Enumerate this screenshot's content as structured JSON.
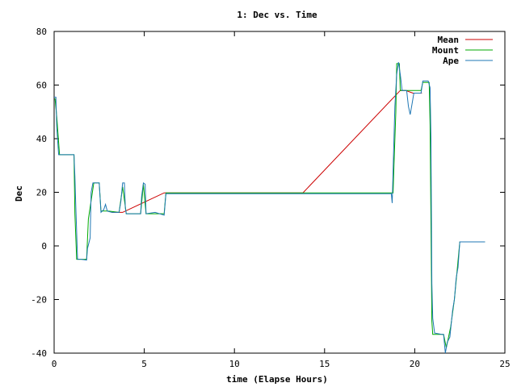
{
  "chart_data": {
    "type": "line",
    "title": "1: Dec vs. Time",
    "xlabel": "time (Elapse Hours)",
    "ylabel": "Dec",
    "xlim": [
      0,
      25
    ],
    "ylim": [
      -40,
      80
    ],
    "x_ticks": [
      0,
      5,
      10,
      15,
      20,
      25
    ],
    "y_ticks": [
      -40,
      -20,
      0,
      20,
      40,
      60,
      80
    ],
    "grid": false,
    "legend_position": "top-right",
    "series": [
      {
        "name": "Mean",
        "color": "#cc0000",
        "points": [
          [
            3.2,
            12.5
          ],
          [
            3.8,
            12.5
          ],
          [
            6.1,
            19.8
          ],
          [
            13.8,
            19.8
          ],
          [
            19.2,
            58.0
          ],
          [
            19.5,
            58.0
          ],
          [
            19.9,
            57.0
          ],
          [
            20.4,
            57.0
          ]
        ]
      },
      {
        "name": "Mount",
        "color": "#00aa00",
        "points": [
          [
            0.05,
            55
          ],
          [
            0.15,
            48
          ],
          [
            0.3,
            34
          ],
          [
            1.1,
            34
          ],
          [
            1.15,
            12
          ],
          [
            1.25,
            -5
          ],
          [
            1.8,
            -5
          ],
          [
            1.9,
            10
          ],
          [
            2.2,
            23.5
          ],
          [
            2.5,
            23.5
          ],
          [
            2.6,
            13
          ],
          [
            3.0,
            13
          ],
          [
            3.6,
            12.5
          ],
          [
            3.8,
            22
          ],
          [
            4.0,
            12
          ],
          [
            4.8,
            12
          ],
          [
            4.95,
            23
          ],
          [
            5.1,
            12
          ],
          [
            6.1,
            12
          ],
          [
            6.2,
            19.8
          ],
          [
            18.8,
            19.8
          ],
          [
            18.85,
            30
          ],
          [
            18.95,
            50
          ],
          [
            19.0,
            68
          ],
          [
            19.15,
            68
          ],
          [
            19.2,
            58
          ],
          [
            20.35,
            58
          ],
          [
            20.45,
            61
          ],
          [
            20.8,
            61
          ],
          [
            20.85,
            45
          ],
          [
            20.95,
            -28
          ],
          [
            21.0,
            -33
          ],
          [
            21.6,
            -33
          ],
          [
            21.75,
            -38
          ],
          [
            22.0,
            -30
          ],
          [
            22.2,
            -20
          ],
          [
            22.5,
            1.5
          ],
          [
            23.9,
            1.5
          ]
        ]
      },
      {
        "name": "Ape",
        "color": "#1f77b4",
        "points": [
          [
            0.0,
            55.5
          ],
          [
            0.1,
            55.5
          ],
          [
            0.15,
            44
          ],
          [
            0.25,
            34
          ],
          [
            1.1,
            34
          ],
          [
            1.15,
            26
          ],
          [
            1.2,
            15
          ],
          [
            1.3,
            -5
          ],
          [
            1.5,
            -5
          ],
          [
            1.8,
            -5.3
          ],
          [
            1.85,
            -1
          ],
          [
            2.0,
            3
          ],
          [
            2.05,
            20
          ],
          [
            2.15,
            23.5
          ],
          [
            2.5,
            23.5
          ],
          [
            2.6,
            12.5
          ],
          [
            2.75,
            13.5
          ],
          [
            2.85,
            15.5
          ],
          [
            2.95,
            13
          ],
          [
            3.2,
            12.5
          ],
          [
            3.6,
            12.5
          ],
          [
            3.7,
            16.5
          ],
          [
            3.8,
            23.5
          ],
          [
            3.9,
            23.5
          ],
          [
            3.95,
            14
          ],
          [
            4.0,
            12
          ],
          [
            4.8,
            12
          ],
          [
            4.85,
            18.5
          ],
          [
            4.95,
            23.5
          ],
          [
            5.05,
            23
          ],
          [
            5.1,
            12
          ],
          [
            5.6,
            12.5
          ],
          [
            6.1,
            11.5
          ],
          [
            6.2,
            19.5
          ],
          [
            18.7,
            19.5
          ],
          [
            18.75,
            16
          ],
          [
            18.8,
            28
          ],
          [
            18.9,
            52
          ],
          [
            19.0,
            64
          ],
          [
            19.1,
            68.5
          ],
          [
            19.2,
            64
          ],
          [
            19.3,
            58
          ],
          [
            19.55,
            58
          ],
          [
            19.65,
            52
          ],
          [
            19.75,
            49
          ],
          [
            19.85,
            53
          ],
          [
            19.95,
            57
          ],
          [
            20.35,
            57
          ],
          [
            20.45,
            61.5
          ],
          [
            20.75,
            61.5
          ],
          [
            20.85,
            59
          ],
          [
            20.9,
            40
          ],
          [
            20.95,
            -14
          ],
          [
            21.0,
            -27
          ],
          [
            21.1,
            -32.5
          ],
          [
            21.5,
            -33
          ],
          [
            21.6,
            -33
          ],
          [
            21.7,
            -40
          ],
          [
            21.8,
            -36
          ],
          [
            21.95,
            -34
          ],
          [
            22.1,
            -24
          ],
          [
            22.2,
            -20
          ],
          [
            22.3,
            -12
          ],
          [
            22.4,
            -8
          ],
          [
            22.5,
            1.5
          ],
          [
            23.9,
            1.5
          ]
        ]
      }
    ]
  }
}
